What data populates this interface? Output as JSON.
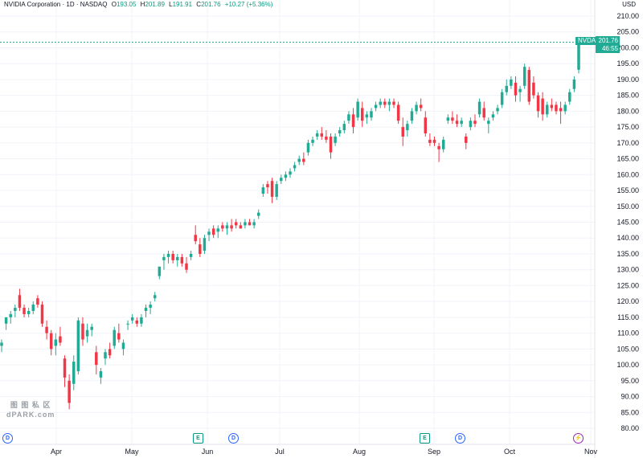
{
  "header": {
    "symbol_title": "NVIDIA Corporation · 1D · NASDAQ",
    "open_label": "O",
    "open_value": "193.05",
    "high_label": "H",
    "high_value": "201.89",
    "low_label": "L",
    "low_value": "191.91",
    "close_label": "C",
    "close_value": "201.76",
    "change": "+10.27 (+5.36%)",
    "currency": "USD"
  },
  "price_tag": {
    "ticker": "NVDA",
    "price": "201.76",
    "countdown": "46:55"
  },
  "watermark": {
    "line1": "图 图 私 区",
    "line2": "dPARK.com"
  },
  "events": [
    {
      "symbol": "D",
      "kind": "dividend",
      "x_month": "Mar"
    },
    {
      "symbol": "E",
      "kind": "earnings",
      "x_month": "May"
    },
    {
      "symbol": "D",
      "kind": "dividend",
      "x_month": "Jun"
    },
    {
      "symbol": "E",
      "kind": "earnings",
      "x_month": "Aug"
    },
    {
      "symbol": "D",
      "kind": "dividend",
      "x_month": "Sep"
    },
    {
      "symbol": "⚡",
      "kind": "split",
      "x_month": "Oct"
    }
  ],
  "colors": {
    "up": "#22ab94",
    "down": "#f23645",
    "grid": "#f0f3fa",
    "axis_text": "#131722",
    "last_price_line": "#22ab94"
  },
  "chart_data": {
    "type": "candlestick",
    "title": "NVIDIA Corporation · 1D · NASDAQ",
    "xlabel": "",
    "ylabel": "USD",
    "ylim": [
      80,
      210
    ],
    "y_ticks": [
      "210.00",
      "205.00",
      "200.00",
      "195.00",
      "190.00",
      "185.00",
      "180.00",
      "175.00",
      "170.00",
      "165.00",
      "160.00",
      "155.00",
      "150.00",
      "145.00",
      "140.00",
      "135.00",
      "130.00",
      "125.00",
      "120.00",
      "115.00",
      "110.00",
      "105.00",
      "100.00",
      "95.00",
      "90.00",
      "85.00",
      "80.00"
    ],
    "x_ticks": [
      "Apr",
      "May",
      "Jun",
      "Jul",
      "Aug",
      "Sep",
      "Oct",
      "Nov"
    ],
    "grid": true,
    "candles": [
      {
        "o": 106,
        "h": 108,
        "l": 104,
        "c": 107
      },
      {
        "o": 113,
        "h": 115,
        "l": 111,
        "c": 115
      },
      {
        "o": 115,
        "h": 117,
        "l": 113,
        "c": 116
      },
      {
        "o": 117,
        "h": 119,
        "l": 115,
        "c": 118
      },
      {
        "o": 122,
        "h": 124,
        "l": 117,
        "c": 118
      },
      {
        "o": 118,
        "h": 119,
        "l": 115,
        "c": 116
      },
      {
        "o": 116,
        "h": 118,
        "l": 115,
        "c": 117
      },
      {
        "o": 117,
        "h": 120,
        "l": 116,
        "c": 119
      },
      {
        "o": 121,
        "h": 122,
        "l": 118,
        "c": 119
      },
      {
        "o": 119,
        "h": 120,
        "l": 112,
        "c": 113
      },
      {
        "o": 112,
        "h": 114,
        "l": 108,
        "c": 110
      },
      {
        "o": 110,
        "h": 111,
        "l": 103,
        "c": 105
      },
      {
        "o": 106,
        "h": 110,
        "l": 103,
        "c": 108
      },
      {
        "o": 109,
        "h": 112,
        "l": 106,
        "c": 107
      },
      {
        "o": 102,
        "h": 103,
        "l": 93,
        "c": 96
      },
      {
        "o": 95,
        "h": 97,
        "l": 86,
        "c": 88
      },
      {
        "o": 94,
        "h": 103,
        "l": 92,
        "c": 101
      },
      {
        "o": 98,
        "h": 115,
        "l": 97,
        "c": 114
      },
      {
        "o": 113,
        "h": 115,
        "l": 106,
        "c": 108
      },
      {
        "o": 109,
        "h": 113,
        "l": 107,
        "c": 111
      },
      {
        "o": 111,
        "h": 113,
        "l": 109,
        "c": 112
      },
      {
        "o": 104,
        "h": 106,
        "l": 97,
        "c": 100
      },
      {
        "o": 96,
        "h": 99,
        "l": 94,
        "c": 98
      },
      {
        "o": 102,
        "h": 105,
        "l": 100,
        "c": 104
      },
      {
        "o": 105,
        "h": 107,
        "l": 102,
        "c": 103
      },
      {
        "o": 106,
        "h": 112,
        "l": 105,
        "c": 111
      },
      {
        "o": 110,
        "h": 113,
        "l": 107,
        "c": 108
      },
      {
        "o": 105,
        "h": 108,
        "l": 103,
        "c": 107
      },
      {
        "o": 113,
        "h": 114,
        "l": 111,
        "c": 113
      },
      {
        "o": 114,
        "h": 116,
        "l": 113,
        "c": 115
      },
      {
        "o": 114,
        "h": 115,
        "l": 112,
        "c": 113
      },
      {
        "o": 113,
        "h": 116,
        "l": 112,
        "c": 115
      },
      {
        "o": 117,
        "h": 119,
        "l": 115,
        "c": 118
      },
      {
        "o": 118,
        "h": 120,
        "l": 116,
        "c": 119
      },
      {
        "o": 121,
        "h": 123,
        "l": 120,
        "c": 122
      },
      {
        "o": 128,
        "h": 131,
        "l": 127,
        "c": 131
      },
      {
        "o": 133,
        "h": 135,
        "l": 130,
        "c": 134
      },
      {
        "o": 134,
        "h": 136,
        "l": 132,
        "c": 135
      },
      {
        "o": 135,
        "h": 136,
        "l": 132,
        "c": 133
      },
      {
        "o": 133,
        "h": 135,
        "l": 131,
        "c": 134
      },
      {
        "o": 134,
        "h": 135,
        "l": 131,
        "c": 132
      },
      {
        "o": 132,
        "h": 134,
        "l": 129,
        "c": 130
      },
      {
        "o": 134,
        "h": 136,
        "l": 133,
        "c": 135
      },
      {
        "o": 141,
        "h": 144,
        "l": 138,
        "c": 139
      },
      {
        "o": 138,
        "h": 140,
        "l": 134,
        "c": 135
      },
      {
        "o": 136,
        "h": 141,
        "l": 135,
        "c": 140
      },
      {
        "o": 141,
        "h": 143,
        "l": 139,
        "c": 142
      },
      {
        "o": 143,
        "h": 144,
        "l": 140,
        "c": 141
      },
      {
        "o": 142,
        "h": 144,
        "l": 140,
        "c": 143
      },
      {
        "o": 144,
        "h": 145,
        "l": 142,
        "c": 143
      },
      {
        "o": 143,
        "h": 145,
        "l": 141,
        "c": 144
      },
      {
        "o": 144,
        "h": 146,
        "l": 142,
        "c": 143
      },
      {
        "o": 145,
        "h": 146,
        "l": 143,
        "c": 144
      },
      {
        "o": 144,
        "h": 145,
        "l": 143,
        "c": 143
      },
      {
        "o": 144,
        "h": 146,
        "l": 143,
        "c": 145
      },
      {
        "o": 145,
        "h": 146,
        "l": 144,
        "c": 144
      },
      {
        "o": 144,
        "h": 146,
        "l": 143,
        "c": 145
      },
      {
        "o": 147,
        "h": 149,
        "l": 146,
        "c": 148
      },
      {
        "o": 154,
        "h": 157,
        "l": 153,
        "c": 156
      },
      {
        "o": 157,
        "h": 158,
        "l": 154,
        "c": 156
      },
      {
        "o": 158,
        "h": 159,
        "l": 151,
        "c": 153
      },
      {
        "o": 153,
        "h": 158,
        "l": 152,
        "c": 157
      },
      {
        "o": 158,
        "h": 160,
        "l": 157,
        "c": 159
      },
      {
        "o": 159,
        "h": 161,
        "l": 158,
        "c": 160
      },
      {
        "o": 160,
        "h": 162,
        "l": 159,
        "c": 161
      },
      {
        "o": 162,
        "h": 164,
        "l": 161,
        "c": 163
      },
      {
        "o": 164,
        "h": 166,
        "l": 163,
        "c": 165
      },
      {
        "o": 165,
        "h": 167,
        "l": 163,
        "c": 164
      },
      {
        "o": 167,
        "h": 171,
        "l": 166,
        "c": 170
      },
      {
        "o": 170,
        "h": 172,
        "l": 169,
        "c": 171
      },
      {
        "o": 172,
        "h": 174,
        "l": 171,
        "c": 173
      },
      {
        "o": 173,
        "h": 175,
        "l": 171,
        "c": 172
      },
      {
        "o": 172,
        "h": 174,
        "l": 170,
        "c": 171
      },
      {
        "o": 172,
        "h": 173,
        "l": 165,
        "c": 167
      },
      {
        "o": 170,
        "h": 173,
        "l": 169,
        "c": 172
      },
      {
        "o": 173,
        "h": 175,
        "l": 172,
        "c": 174
      },
      {
        "o": 174,
        "h": 177,
        "l": 173,
        "c": 176
      },
      {
        "o": 177,
        "h": 180,
        "l": 176,
        "c": 179
      },
      {
        "o": 179,
        "h": 181,
        "l": 173,
        "c": 175
      },
      {
        "o": 178,
        "h": 184,
        "l": 177,
        "c": 183
      },
      {
        "o": 181,
        "h": 183,
        "l": 175,
        "c": 177
      },
      {
        "o": 178,
        "h": 180,
        "l": 176,
        "c": 179
      },
      {
        "o": 178,
        "h": 181,
        "l": 177,
        "c": 180
      },
      {
        "o": 181,
        "h": 183,
        "l": 180,
        "c": 182
      },
      {
        "o": 182,
        "h": 184,
        "l": 181,
        "c": 183
      },
      {
        "o": 183,
        "h": 184,
        "l": 181,
        "c": 182
      },
      {
        "o": 182,
        "h": 184,
        "l": 180,
        "c": 183
      },
      {
        "o": 183,
        "h": 184,
        "l": 181,
        "c": 182
      },
      {
        "o": 182,
        "h": 183,
        "l": 176,
        "c": 177
      },
      {
        "o": 175,
        "h": 178,
        "l": 169,
        "c": 172
      },
      {
        "o": 174,
        "h": 177,
        "l": 172,
        "c": 176
      },
      {
        "o": 177,
        "h": 181,
        "l": 176,
        "c": 180
      },
      {
        "o": 180,
        "h": 183,
        "l": 179,
        "c": 182
      },
      {
        "o": 182,
        "h": 184,
        "l": 180,
        "c": 181
      },
      {
        "o": 178,
        "h": 180,
        "l": 172,
        "c": 173
      },
      {
        "o": 171,
        "h": 173,
        "l": 169,
        "c": 170
      },
      {
        "o": 171,
        "h": 172,
        "l": 169,
        "c": 170
      },
      {
        "o": 169,
        "h": 170,
        "l": 164,
        "c": 168
      },
      {
        "o": 168,
        "h": 172,
        "l": 167,
        "c": 171
      },
      {
        "o": 177,
        "h": 179,
        "l": 176,
        "c": 178
      },
      {
        "o": 178,
        "h": 180,
        "l": 176,
        "c": 177
      },
      {
        "o": 177,
        "h": 179,
        "l": 175,
        "c": 176
      },
      {
        "o": 176,
        "h": 178,
        "l": 175,
        "c": 177
      },
      {
        "o": 172,
        "h": 173,
        "l": 168,
        "c": 170
      },
      {
        "o": 175,
        "h": 178,
        "l": 174,
        "c": 177
      },
      {
        "o": 177,
        "h": 179,
        "l": 175,
        "c": 176
      },
      {
        "o": 179,
        "h": 184,
        "l": 178,
        "c": 183
      },
      {
        "o": 181,
        "h": 183,
        "l": 177,
        "c": 178
      },
      {
        "o": 176,
        "h": 178,
        "l": 173,
        "c": 177
      },
      {
        "o": 178,
        "h": 180,
        "l": 177,
        "c": 179
      },
      {
        "o": 180,
        "h": 182,
        "l": 179,
        "c": 181
      },
      {
        "o": 182,
        "h": 187,
        "l": 181,
        "c": 186
      },
      {
        "o": 186,
        "h": 190,
        "l": 185,
        "c": 188
      },
      {
        "o": 188,
        "h": 191,
        "l": 187,
        "c": 190
      },
      {
        "o": 189,
        "h": 191,
        "l": 183,
        "c": 185
      },
      {
        "o": 186,
        "h": 188,
        "l": 183,
        "c": 187
      },
      {
        "o": 188,
        "h": 195,
        "l": 187,
        "c": 194
      },
      {
        "o": 193,
        "h": 194,
        "l": 182,
        "c": 183
      },
      {
        "o": 189,
        "h": 191,
        "l": 184,
        "c": 185
      },
      {
        "o": 185,
        "h": 186,
        "l": 178,
        "c": 180
      },
      {
        "o": 184,
        "h": 186,
        "l": 177,
        "c": 179
      },
      {
        "o": 179,
        "h": 183,
        "l": 178,
        "c": 182
      },
      {
        "o": 182,
        "h": 184,
        "l": 180,
        "c": 181
      },
      {
        "o": 182,
        "h": 183,
        "l": 179,
        "c": 180
      },
      {
        "o": 181,
        "h": 183,
        "l": 176,
        "c": 180
      },
      {
        "o": 180,
        "h": 183,
        "l": 179,
        "c": 182
      },
      {
        "o": 183,
        "h": 187,
        "l": 182,
        "c": 186
      },
      {
        "o": 187,
        "h": 191,
        "l": 186,
        "c": 190
      },
      {
        "o": 193.05,
        "h": 201.89,
        "l": 191.91,
        "c": 201.76
      }
    ]
  }
}
